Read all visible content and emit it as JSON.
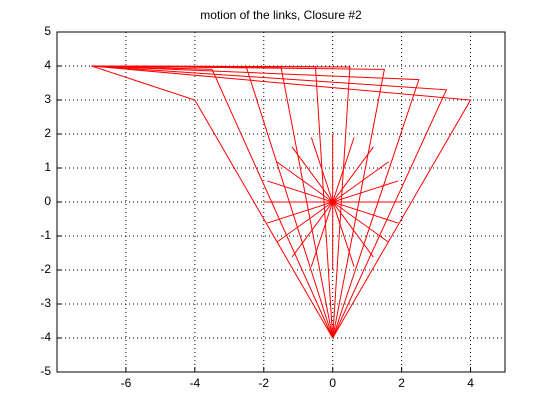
{
  "chart_data": {
    "type": "line",
    "title": "motion of the links, Closure #2",
    "xlim": [
      -8,
      5
    ],
    "ylim": [
      -5,
      5
    ],
    "xticks": [
      -6,
      -4,
      -2,
      0,
      2,
      4
    ],
    "yticks": [
      -5,
      -4,
      -3,
      -2,
      -1,
      0,
      1,
      2,
      3,
      4,
      5
    ],
    "grid": true,
    "series": [
      {
        "color": "#ff0000",
        "x": [
          -7,
          -4,
          0,
          null,
          2,
          -2
        ],
        "values": [
          4,
          3,
          -4,
          null,
          0,
          0
        ]
      },
      {
        "color": "#ff0000",
        "x": [
          -7,
          -3.5,
          0,
          null,
          1.9,
          -1.9
        ],
        "values": [
          4,
          3.9,
          -4,
          null,
          0.62,
          -0.62
        ]
      },
      {
        "color": "#ff0000",
        "x": [
          -7,
          -2.5,
          0,
          null,
          1.62,
          -1.62
        ],
        "values": [
          4,
          3.95,
          -4,
          null,
          1.18,
          -1.18
        ]
      },
      {
        "color": "#ff0000",
        "x": [
          -7,
          -1.5,
          0,
          null,
          1.18,
          -1.18
        ],
        "values": [
          4,
          3.97,
          -4,
          null,
          1.62,
          -1.62
        ]
      },
      {
        "color": "#ff0000",
        "x": [
          -7,
          -0.5,
          0,
          null,
          0.62,
          -0.62
        ],
        "values": [
          4,
          3.98,
          -4,
          null,
          1.9,
          -1.9
        ]
      },
      {
        "color": "#ff0000",
        "x": [
          -7,
          0.5,
          0,
          null,
          0,
          0
        ],
        "values": [
          4,
          3.97,
          -4,
          null,
          2,
          -2
        ]
      },
      {
        "color": "#ff0000",
        "x": [
          -7,
          1.5,
          0,
          null,
          -0.62,
          0.62
        ],
        "values": [
          4,
          3.9,
          -4,
          null,
          1.9,
          -1.9
        ]
      },
      {
        "color": "#ff0000",
        "x": [
          -7,
          2.5,
          0,
          null,
          -1.18,
          1.18
        ],
        "values": [
          4,
          3.6,
          -4,
          null,
          1.62,
          -1.62
        ]
      },
      {
        "color": "#ff0000",
        "x": [
          -7,
          3.3,
          0,
          null,
          -1.62,
          1.62
        ],
        "values": [
          4,
          3.3,
          -4,
          null,
          1.18,
          -1.18
        ]
      },
      {
        "color": "#ff0000",
        "x": [
          -7,
          4,
          0,
          null,
          -1.9,
          1.9
        ],
        "values": [
          4,
          3,
          -4,
          null,
          0.62,
          -0.62
        ]
      }
    ]
  }
}
